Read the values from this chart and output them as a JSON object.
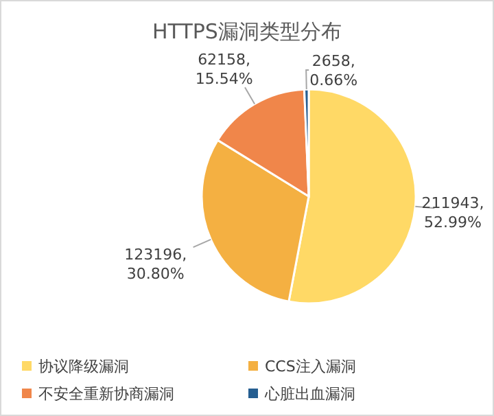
{
  "chart_data": {
    "type": "pie",
    "title": "HTTPS漏洞类型分布",
    "categories": [
      "协议降级漏洞",
      "CCS注入漏洞",
      "不安全重新协商漏洞",
      "心脏出血漏洞"
    ],
    "values": [
      211943,
      123196,
      62158,
      2658
    ],
    "value_labels": [
      "211943, 52.99%",
      "123196, 30.80%",
      "62158, 15.54%",
      "2658, 0.66%"
    ],
    "colors": [
      "#ffd966",
      "#f4b042",
      "#f0864a",
      "#255e91"
    ],
    "legend": "bottom"
  }
}
